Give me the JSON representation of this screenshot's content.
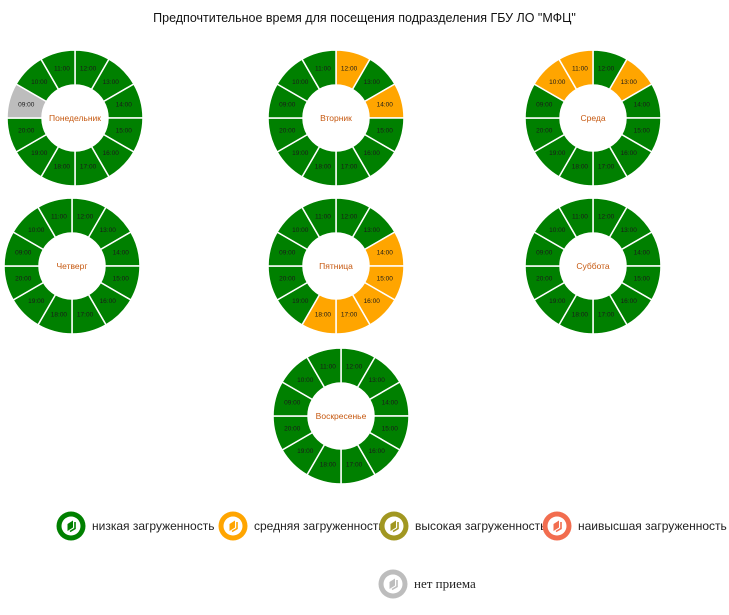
{
  "title": "Предпочтительное время для посещения подразделения ГБУ ЛО \"МФЦ\"",
  "colors": {
    "low": "#008000",
    "medium": "#FFA500",
    "high": "#A19721",
    "highest": "#F26D4F",
    "closed": "#BDBDBD",
    "day_label": "#C65911"
  },
  "chart_data": [
    {
      "type": "pie",
      "day": "Понедельник",
      "slots": [
        {
          "time": "12:00",
          "load": "low"
        },
        {
          "time": "13:00",
          "load": "low"
        },
        {
          "time": "14:00",
          "load": "low"
        },
        {
          "time": "15:00",
          "load": "low"
        },
        {
          "time": "16:00",
          "load": "low"
        },
        {
          "time": "17:00",
          "load": "low"
        },
        {
          "time": "18:00",
          "load": "low"
        },
        {
          "time": "19:00",
          "load": "low"
        },
        {
          "time": "20:00",
          "load": "low"
        },
        {
          "time": "09:00",
          "load": "closed"
        },
        {
          "time": "10:00",
          "load": "low"
        },
        {
          "time": "11:00",
          "load": "low"
        }
      ]
    },
    {
      "type": "pie",
      "day": "Вторник",
      "slots": [
        {
          "time": "12:00",
          "load": "medium"
        },
        {
          "time": "13:00",
          "load": "low"
        },
        {
          "time": "14:00",
          "load": "medium"
        },
        {
          "time": "15:00",
          "load": "low"
        },
        {
          "time": "16:00",
          "load": "low"
        },
        {
          "time": "17:00",
          "load": "low"
        },
        {
          "time": "18:00",
          "load": "low"
        },
        {
          "time": "19:00",
          "load": "low"
        },
        {
          "time": "20:00",
          "load": "low"
        },
        {
          "time": "09:00",
          "load": "low"
        },
        {
          "time": "10:00",
          "load": "low"
        },
        {
          "time": "11:00",
          "load": "low"
        }
      ]
    },
    {
      "type": "pie",
      "day": "Среда",
      "slots": [
        {
          "time": "12:00",
          "load": "low"
        },
        {
          "time": "13:00",
          "load": "medium"
        },
        {
          "time": "14:00",
          "load": "low"
        },
        {
          "time": "15:00",
          "load": "low"
        },
        {
          "time": "16:00",
          "load": "low"
        },
        {
          "time": "17:00",
          "load": "low"
        },
        {
          "time": "18:00",
          "load": "low"
        },
        {
          "time": "19:00",
          "load": "low"
        },
        {
          "time": "20:00",
          "load": "low"
        },
        {
          "time": "09:00",
          "load": "low"
        },
        {
          "time": "10:00",
          "load": "medium"
        },
        {
          "time": "11:00",
          "load": "medium"
        }
      ]
    },
    {
      "type": "pie",
      "day": "Четверг",
      "slots": [
        {
          "time": "12:00",
          "load": "low"
        },
        {
          "time": "13:00",
          "load": "low"
        },
        {
          "time": "14:00",
          "load": "low"
        },
        {
          "time": "15:00",
          "load": "low"
        },
        {
          "time": "16:00",
          "load": "low"
        },
        {
          "time": "17:00",
          "load": "low"
        },
        {
          "time": "18:00",
          "load": "low"
        },
        {
          "time": "19:00",
          "load": "low"
        },
        {
          "time": "20:00",
          "load": "low"
        },
        {
          "time": "09:00",
          "load": "low"
        },
        {
          "time": "10:00",
          "load": "low"
        },
        {
          "time": "11:00",
          "load": "low"
        }
      ]
    },
    {
      "type": "pie",
      "day": "Пятница",
      "slots": [
        {
          "time": "12:00",
          "load": "low"
        },
        {
          "time": "13:00",
          "load": "low"
        },
        {
          "time": "14:00",
          "load": "medium"
        },
        {
          "time": "15:00",
          "load": "medium"
        },
        {
          "time": "16:00",
          "load": "medium"
        },
        {
          "time": "17:00",
          "load": "medium"
        },
        {
          "time": "18:00",
          "load": "medium"
        },
        {
          "time": "19:00",
          "load": "low"
        },
        {
          "time": "20:00",
          "load": "low"
        },
        {
          "time": "09:00",
          "load": "low"
        },
        {
          "time": "10:00",
          "load": "low"
        },
        {
          "time": "11:00",
          "load": "low"
        }
      ]
    },
    {
      "type": "pie",
      "day": "Суббота",
      "slots": [
        {
          "time": "12:00",
          "load": "low"
        },
        {
          "time": "13:00",
          "load": "low"
        },
        {
          "time": "14:00",
          "load": "low"
        },
        {
          "time": "15:00",
          "load": "low"
        },
        {
          "time": "16:00",
          "load": "low"
        },
        {
          "time": "17:00",
          "load": "low"
        },
        {
          "time": "18:00",
          "load": "low"
        },
        {
          "time": "19:00",
          "load": "low"
        },
        {
          "time": "20:00",
          "load": "low"
        },
        {
          "time": "09:00",
          "load": "low"
        },
        {
          "time": "10:00",
          "load": "low"
        },
        {
          "time": "11:00",
          "load": "low"
        }
      ]
    },
    {
      "type": "pie",
      "day": "Воскресенье",
      "slots": [
        {
          "time": "12:00",
          "load": "low"
        },
        {
          "time": "13:00",
          "load": "low"
        },
        {
          "time": "14:00",
          "load": "low"
        },
        {
          "time": "15:00",
          "load": "low"
        },
        {
          "time": "16:00",
          "load": "low"
        },
        {
          "time": "17:00",
          "load": "low"
        },
        {
          "time": "18:00",
          "load": "low"
        },
        {
          "time": "19:00",
          "load": "low"
        },
        {
          "time": "20:00",
          "load": "low"
        },
        {
          "time": "09:00",
          "load": "low"
        },
        {
          "time": "10:00",
          "load": "low"
        },
        {
          "time": "11:00",
          "load": "low"
        }
      ]
    }
  ],
  "legend": [
    {
      "key": "low",
      "label": "низкая загруженность"
    },
    {
      "key": "medium",
      "label": "средняя загруженность"
    },
    {
      "key": "high",
      "label": "высокая загруженность"
    },
    {
      "key": "highest",
      "label": "наивысшая загруженность"
    },
    {
      "key": "closed",
      "label": "нет приема"
    }
  ]
}
